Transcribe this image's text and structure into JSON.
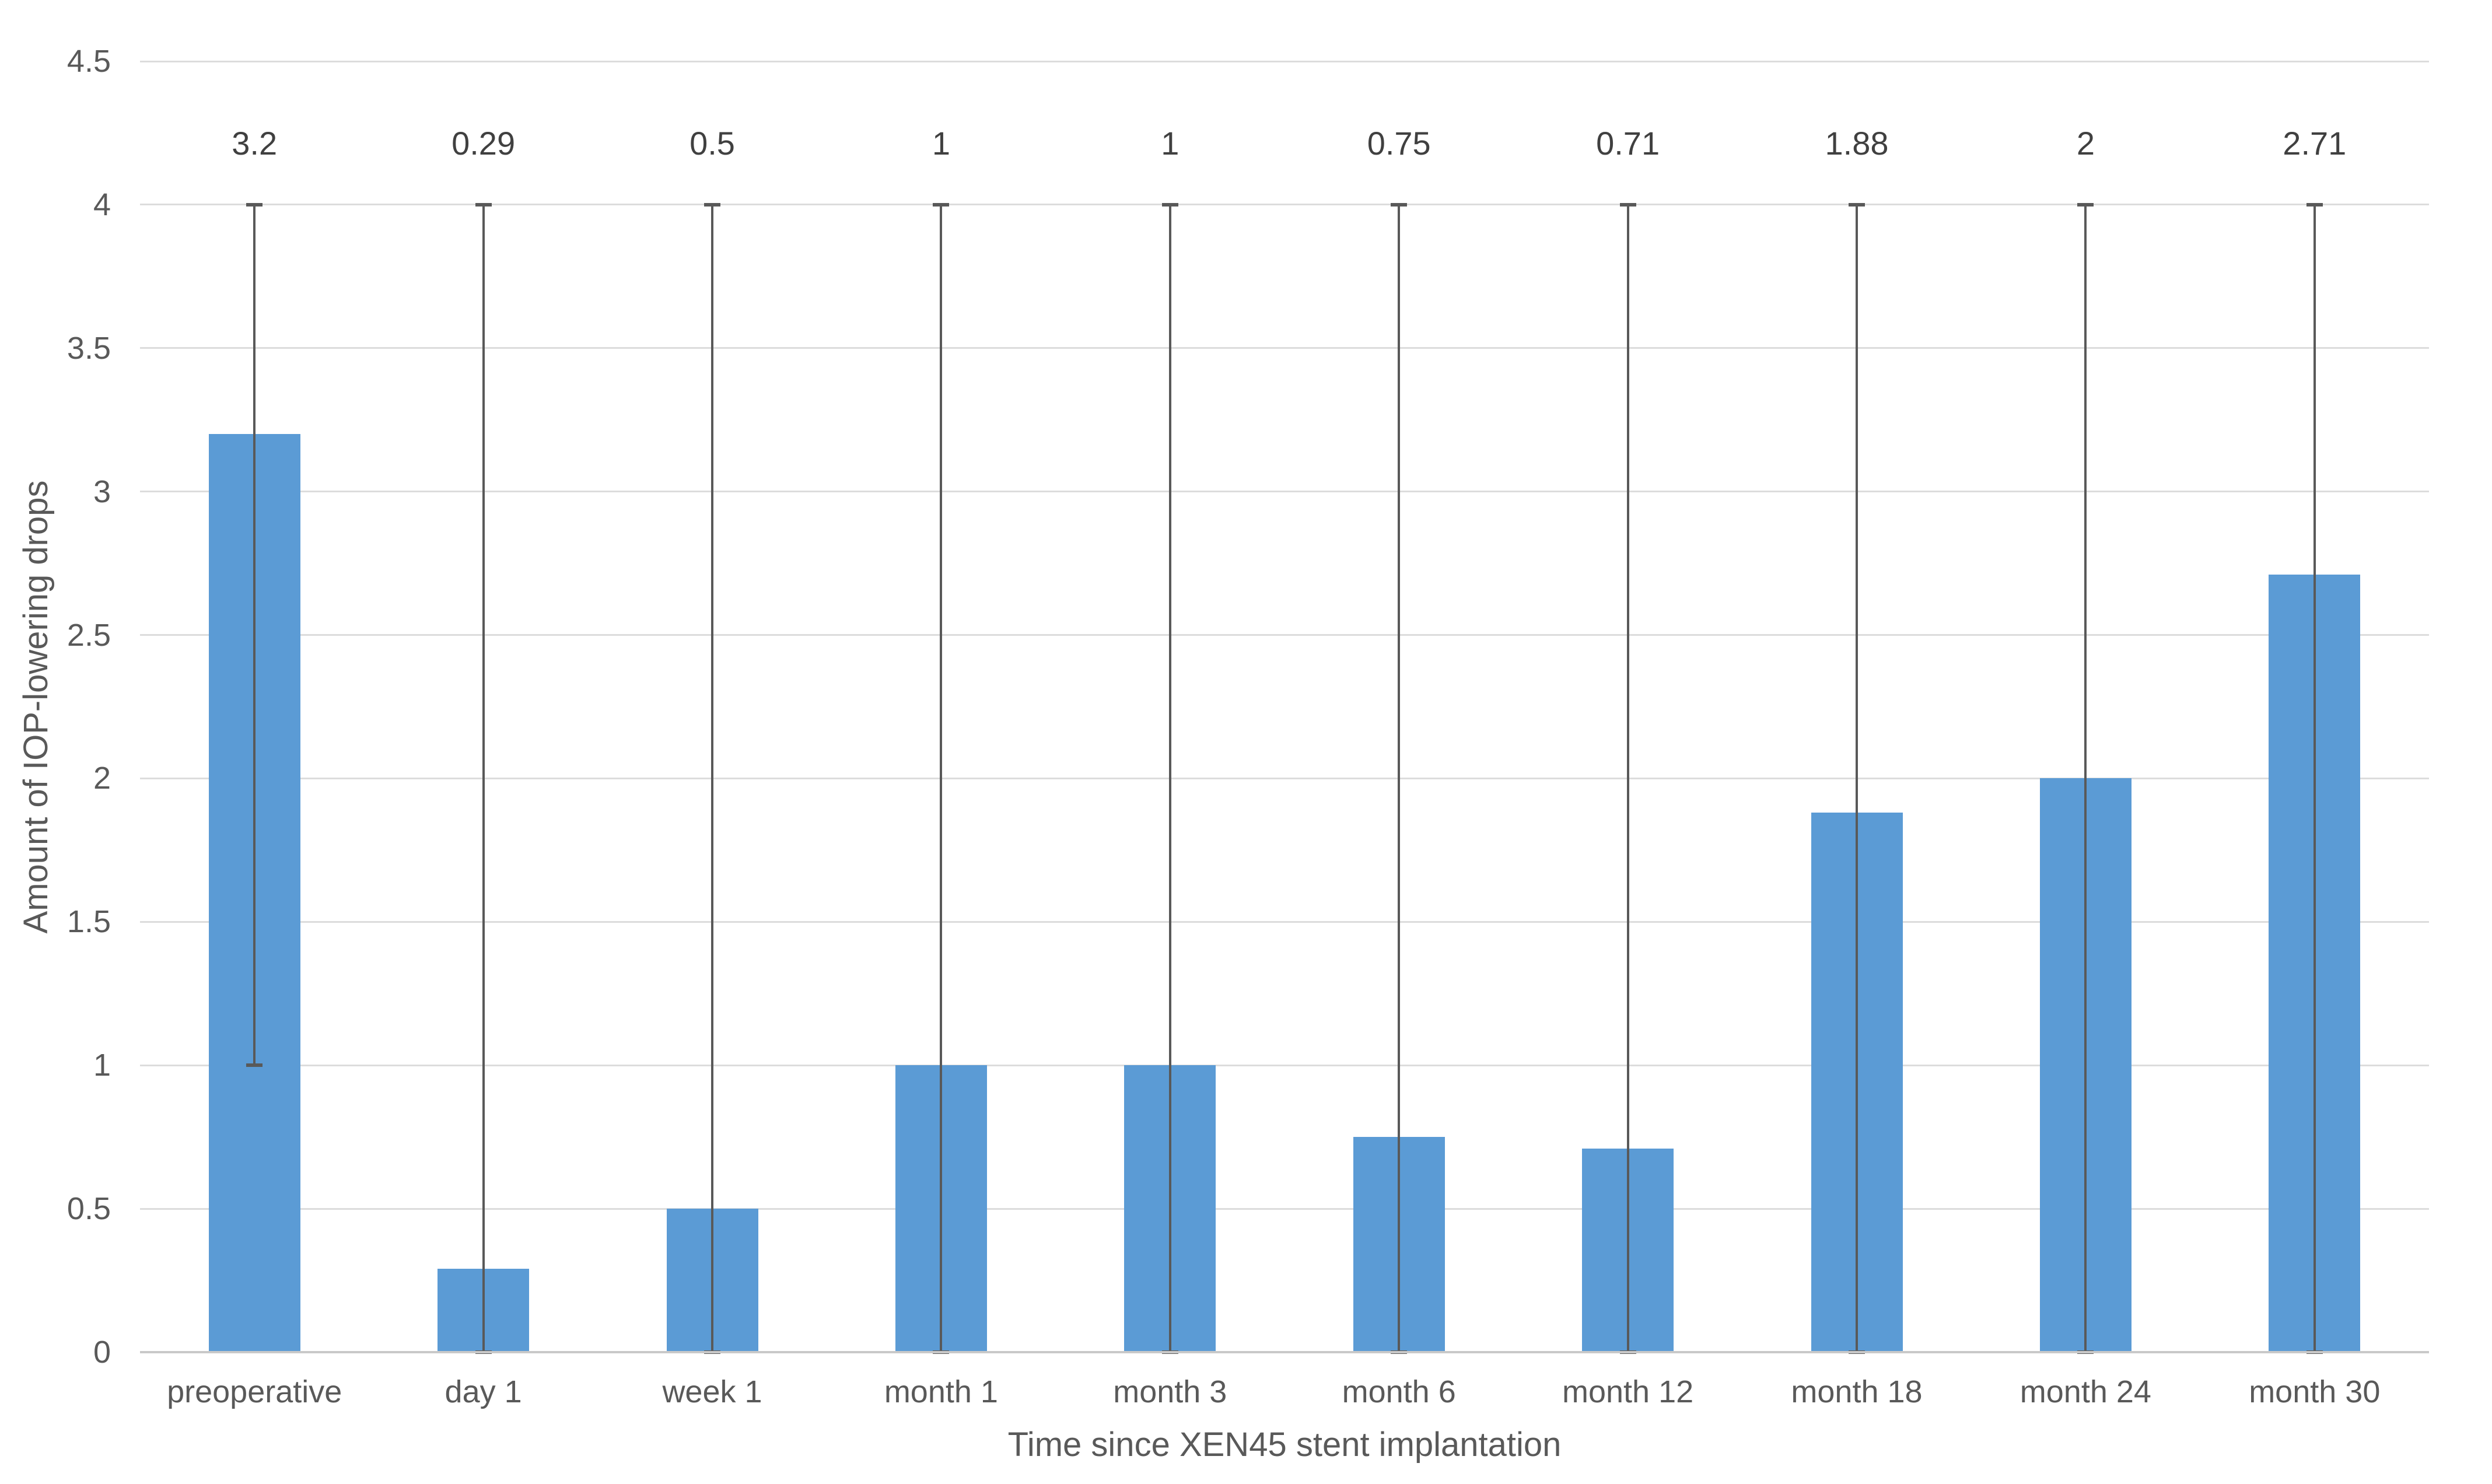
{
  "chart_data": {
    "type": "bar",
    "title": "",
    "xlabel": "Time since XEN45 stent implantation",
    "ylabel": "Amount of IOP-lowering drops",
    "categories": [
      "preoperative",
      "day 1",
      "week 1",
      "month 1",
      "month 3",
      "month 6",
      "month 12",
      "month 18",
      "month 24",
      "month 30"
    ],
    "values": [
      3.2,
      0.29,
      0.5,
      1,
      1,
      0.75,
      0.71,
      1.88,
      2,
      2.71
    ],
    "data_labels": [
      "3.2",
      "0.29",
      "0.5",
      "1",
      "1",
      "0.75",
      "0.71",
      "1.88",
      "2",
      "2.71"
    ],
    "whisker_max": [
      4,
      4,
      4,
      4,
      4,
      4,
      4,
      4,
      4,
      4
    ],
    "whisker_min": [
      1,
      0,
      0,
      0,
      0,
      0,
      0,
      0,
      0,
      0
    ],
    "ylim": [
      0,
      4.5
    ],
    "ytick_step": 0.5,
    "yticks": [
      "0",
      "0.5",
      "1",
      "1.5",
      "2",
      "2.5",
      "3",
      "3.5",
      "4",
      "4.5"
    ],
    "grid": true,
    "legend": "none",
    "colors": {
      "bar": "#5b9bd5",
      "whisker": "#595959",
      "gridline": "#dcdcdc",
      "axis_line": "#c9c9c9",
      "tick_text": "#595959",
      "data_label_text": "#404040",
      "axis_title_text": "#595959"
    }
  }
}
